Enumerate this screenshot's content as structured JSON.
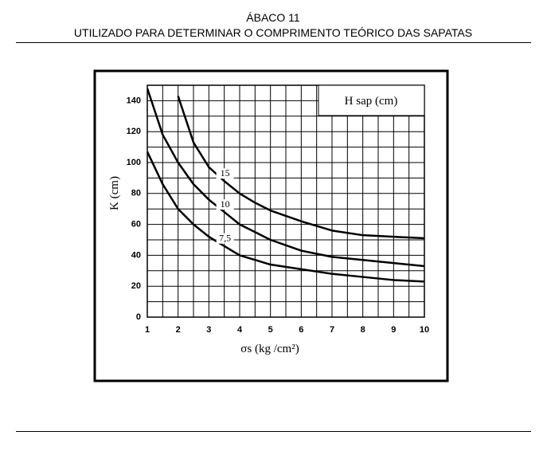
{
  "header": {
    "title": "ÁBACO 11",
    "subtitle": "UTILIZADO PARA DETERMINAR O COMPRIMENTO TEÓRICO DAS SAPATAS"
  },
  "chart_data": {
    "type": "line",
    "legend_title": "H sap (cm)",
    "x_label": "σs  (kg /cm²)",
    "y_label": "K (cm)",
    "x": [
      1,
      1.5,
      2,
      2.5,
      3,
      3.5,
      4,
      4.5,
      5,
      6,
      7,
      8,
      9,
      10
    ],
    "series": [
      {
        "name": "15",
        "color": "#000000",
        "values": [
          null,
          null,
          143,
          113,
          97,
          88,
          80,
          74,
          69,
          62,
          56,
          53,
          52,
          51
        ]
      },
      {
        "name": "10",
        "color": "#000000",
        "values": [
          148,
          118,
          100,
          86,
          76,
          68,
          60,
          55,
          50,
          43,
          39,
          37,
          35,
          33
        ]
      },
      {
        "name": "7,5",
        "color": "#000000",
        "values": [
          107,
          86,
          70,
          60,
          52,
          46,
          40,
          37,
          34,
          31,
          28,
          26,
          24,
          23
        ]
      }
    ],
    "xlim": [
      1,
      10
    ],
    "ylim": [
      0,
      150
    ],
    "xticks": [
      1,
      2,
      3,
      4,
      5,
      6,
      7,
      8,
      9,
      10
    ],
    "yticks": [
      0,
      20,
      40,
      60,
      80,
      100,
      120,
      140
    ],
    "grid": true
  }
}
